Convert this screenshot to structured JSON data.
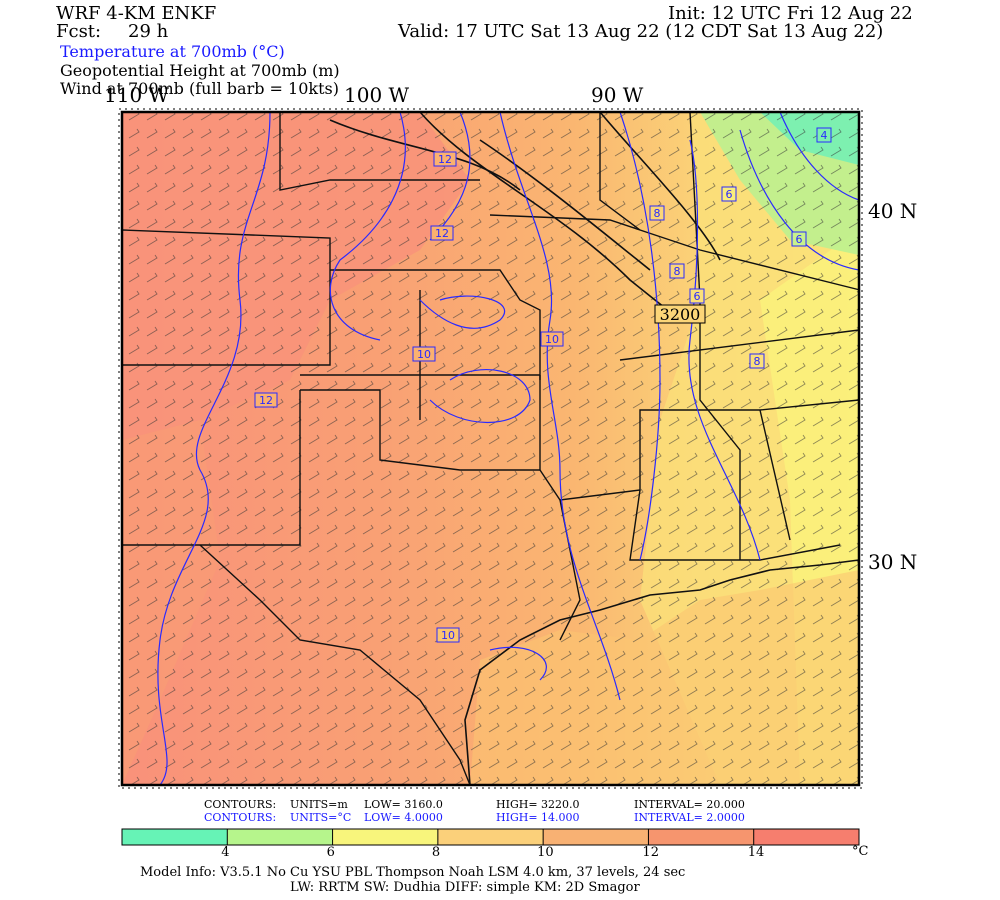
{
  "header": {
    "model": "WRF 4-KM ENKF",
    "forecast_label": "Fcst:",
    "forecast_hours": "29 h",
    "init": "Init: 12 UTC Fri 12 Aug 22",
    "valid": "Valid: 17 UTC Sat 13 Aug 22 (12 CDT Sat 13 Aug 22)",
    "field1": "Temperature at 700mb (°C)",
    "field2": "Geopotential Height at 700mb (m)",
    "field3": "Wind at 700mb (full barb = 10kts)"
  },
  "map": {
    "lon_labels": [
      "110 W",
      "100 W",
      "90 W"
    ],
    "lat_labels": [
      "40 N",
      "30 N"
    ],
    "height_contour_label": "3200",
    "temp_contour_labels": [
      "12",
      "12",
      "10",
      "10",
      "12",
      "10",
      "8",
      "8",
      "8",
      "6",
      "6",
      "6",
      "4"
    ],
    "colors": {
      "green": "#66f0aa",
      "yellow": "#faf57a",
      "orange": "#fbb871",
      "red": "#f89078"
    }
  },
  "contour_info": {
    "line1": {
      "name": "CONTOURS:",
      "units": "UNITS=m",
      "low": "LOW=   3160.0",
      "high": "HIGH=   3220.0",
      "interval": "INTERVAL=    20.000"
    },
    "line2": {
      "name": "CONTOURS:",
      "units": "UNITS=°C",
      "low": "LOW=   4.0000",
      "high": "HIGH=   14.000",
      "interval": "INTERVAL=    2.0000"
    }
  },
  "colorbar": {
    "ticks": [
      "4",
      "6",
      "8",
      "10",
      "12",
      "14"
    ],
    "unit": "°C",
    "colors": [
      "#66f3b6",
      "#b6f58c",
      "#f8f57c",
      "#fbd07a",
      "#f8b173",
      "#f6956e",
      "#f67e6e"
    ]
  },
  "footer": {
    "line1": "Model Info: V3.5.1    No Cu    YSU PBL    Thompson        Noah LSM   4.0 km,    37 levels,    24 sec",
    "line2": "LW: RRTM  SW: Dudhia   DIFF: simple  KM: 2D Smagor"
  }
}
